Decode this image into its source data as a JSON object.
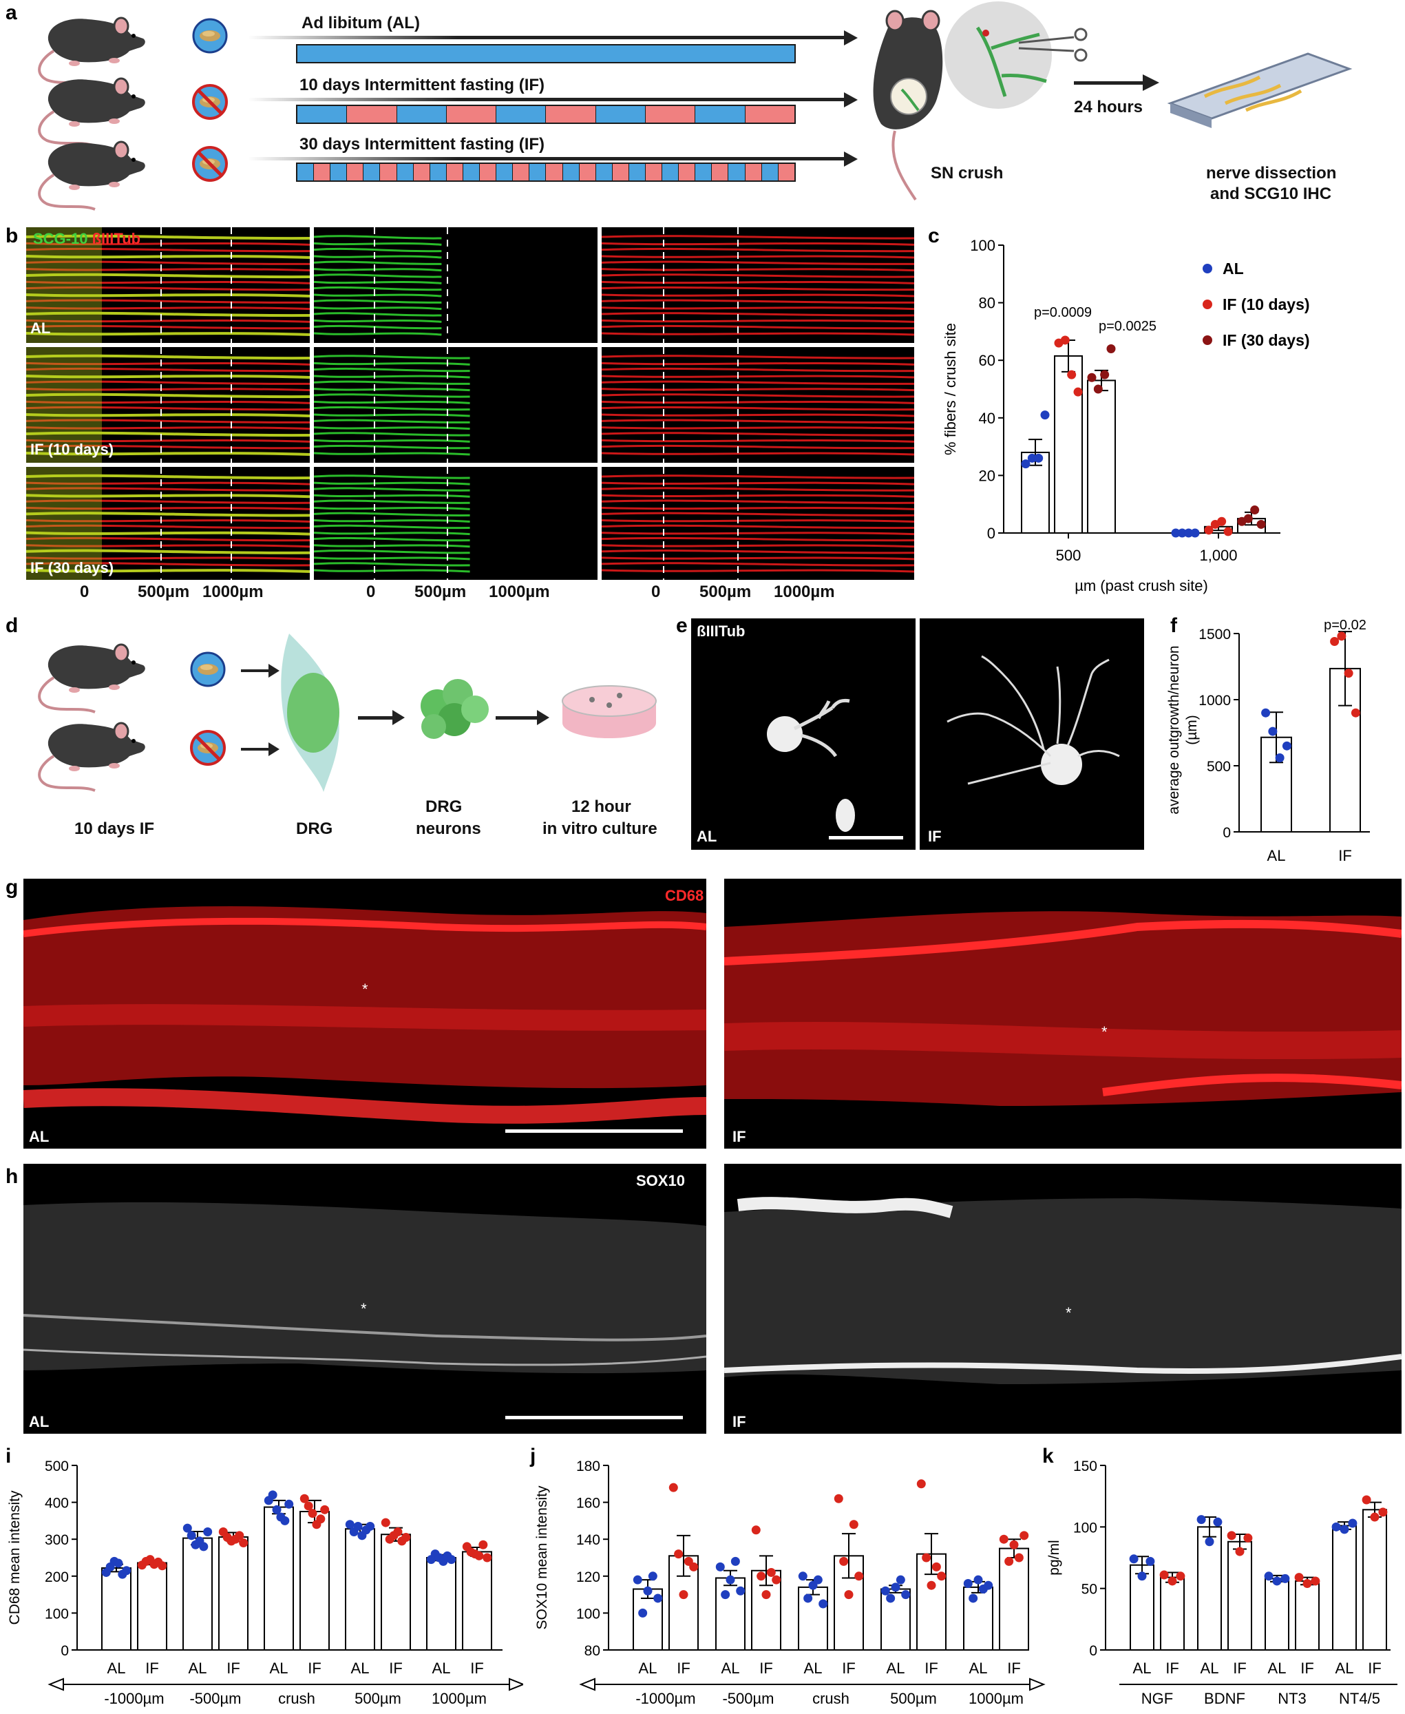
{
  "colors": {
    "AL": "#1f3fbf",
    "IF10": "#d9261c",
    "IF30": "#8b1414",
    "bar_blue": "#4aa3df",
    "bar_red": "#f08080",
    "green": "#3fbf3f",
    "red": "#e01010"
  },
  "panel_letters": [
    "a",
    "b",
    "c",
    "d",
    "e",
    "f",
    "g",
    "h",
    "i",
    "j",
    "k"
  ],
  "panel_a": {
    "arrows": [
      "Ad libitum (AL)",
      "10 days Intermittent fasting (IF)",
      "30 days Intermittent fasting (IF)"
    ],
    "sn_crush": "SN crush",
    "hours": "24 hours",
    "dissection": [
      "nerve dissection",
      "and SCG10 IHC"
    ],
    "icons": [
      "mouse-icon",
      "food-icon",
      "no-food-icon",
      "scissors-icon",
      "slide-icon"
    ]
  },
  "panel_b": {
    "legend_green": "SCG-10",
    "legend_red": "ßIIITub",
    "rows": [
      "AL",
      "IF (10 days)",
      "IF (30 days)"
    ],
    "ticks": [
      "0",
      "500µm",
      "1000µm"
    ]
  },
  "panel_d": {
    "labels": [
      "10 days IF",
      "DRG",
      "DRG",
      "neurons",
      "12 hour",
      "in vitro culture"
    ]
  },
  "panel_e": {
    "title": "ßIIITub",
    "left_tag": "AL",
    "right_tag": "IF"
  },
  "panel_g": {
    "title": "CD68",
    "left_tag": "AL",
    "right_tag": "IF"
  },
  "panel_h": {
    "title": "SOX10",
    "left_tag": "AL",
    "right_tag": "IF"
  },
  "chart_data": [
    {
      "panel": "c",
      "type": "bar",
      "categories": [
        "500",
        "1,000"
      ],
      "series": [
        {
          "name": "AL",
          "values": [
            28,
            0
          ],
          "err": [
            4.5,
            0
          ],
          "points": [
            [
              24,
              26,
              26,
              41
            ],
            [
              0,
              0,
              0,
              0
            ]
          ]
        },
        {
          "name": "IF (10 days)",
          "values": [
            61.5,
            2.2
          ],
          "err": [
            5.5,
            1.3
          ],
          "points": [
            [
              66,
              67,
              55,
              49
            ],
            [
              1,
              3,
              4,
              0.5
            ]
          ]
        },
        {
          "name": "IF (30 days)",
          "values": [
            53,
            5
          ],
          "err": [
            3.5,
            2.2
          ],
          "points": [
            [
              54,
              50,
              55,
              64
            ],
            [
              4,
              5,
              8,
              3
            ]
          ]
        }
      ],
      "annotations": [
        "p=0.0009",
        "p=0.0025"
      ],
      "ylabel": "% fibers / crush site",
      "xlabel": "µm (past crush site)",
      "ylim": [
        0,
        100
      ],
      "yticks": [
        "0",
        "20",
        "40",
        "60",
        "80",
        "100"
      ]
    },
    {
      "panel": "f",
      "type": "bar",
      "categories": [
        "AL",
        "IF"
      ],
      "values": [
        715,
        1235
      ],
      "err": [
        190,
        280
      ],
      "points": [
        [
          900,
          760,
          560,
          650
        ],
        [
          1440,
          1480,
          1200,
          900
        ]
      ],
      "annotation": "p=0.02",
      "ylabel": "average outgrowth/neuron",
      "ylabel2": "(µm)",
      "ylim": [
        0,
        1500
      ],
      "yticks": [
        "0",
        "500",
        "1000",
        "1500"
      ]
    },
    {
      "panel": "i",
      "type": "bar",
      "ylabel": "CD68 mean intensity",
      "ylim": [
        0,
        500
      ],
      "yticks": [
        "0",
        "100",
        "200",
        "300",
        "400",
        "500"
      ],
      "groups": [
        "-1000µm",
        "-500µm",
        "crush",
        "500µm",
        "1000µm"
      ],
      "bar_labels": [
        "AL",
        "IF"
      ],
      "values": [
        [
          222,
          236
        ],
        [
          303,
          306
        ],
        [
          387,
          375
        ],
        [
          328,
          313
        ],
        [
          250,
          266
        ]
      ],
      "err": [
        [
          10,
          5
        ],
        [
          18,
          12
        ],
        [
          18,
          30
        ],
        [
          12,
          18
        ],
        [
          8,
          12
        ]
      ],
      "points": [
        [
          [
            210,
            225,
            240,
            235,
            205,
            215
          ],
          [
            230,
            240,
            245,
            232,
            238,
            228
          ]
        ],
        [
          [
            330,
            310,
            285,
            295,
            280,
            320
          ],
          [
            320,
            305,
            295,
            300,
            310,
            290
          ]
        ],
        [
          [
            405,
            420,
            380,
            360,
            350,
            395
          ],
          [
            410,
            390,
            370,
            340,
            355,
            380
          ]
        ],
        [
          [
            340,
            320,
            335,
            310,
            325,
            335
          ],
          [
            345,
            300,
            310,
            320,
            295,
            305
          ]
        ],
        [
          [
            245,
            260,
            250,
            240,
            255,
            245
          ],
          [
            280,
            265,
            260,
            255,
            285,
            250
          ]
        ]
      ]
    },
    {
      "panel": "j",
      "type": "bar",
      "ylabel": "SOX10 mean intensity",
      "ylim": [
        80,
        180
      ],
      "yticks": [
        "80",
        "100",
        "120",
        "140",
        "160",
        "180"
      ],
      "groups": [
        "-1000µm",
        "-500µm",
        "crush",
        "500µm",
        "1000µm"
      ],
      "bar_labels": [
        "AL",
        "IF"
      ],
      "values": [
        [
          113,
          131
        ],
        [
          119,
          123
        ],
        [
          114,
          131
        ],
        [
          113,
          132
        ],
        [
          114,
          135
        ]
      ],
      "err": [
        [
          5,
          11
        ],
        [
          4,
          8
        ],
        [
          4,
          12
        ],
        [
          2,
          11
        ],
        [
          3,
          5
        ]
      ],
      "points": [
        [
          [
            118,
            100,
            112,
            120,
            108
          ],
          [
            168,
            132,
            110,
            128,
            125
          ]
        ],
        [
          [
            125,
            110,
            118,
            128,
            112
          ],
          [
            145,
            120,
            110,
            122,
            118
          ]
        ],
        [
          [
            120,
            108,
            115,
            118,
            105
          ],
          [
            162,
            128,
            110,
            148,
            120
          ]
        ],
        [
          [
            112,
            108,
            114,
            118,
            110
          ],
          [
            170,
            130,
            115,
            125,
            120
          ]
        ],
        [
          [
            116,
            108,
            118,
            113,
            115
          ],
          [
            140,
            128,
            137,
            130,
            142
          ]
        ]
      ]
    },
    {
      "panel": "k",
      "type": "bar",
      "ylabel": "pg/ml",
      "ylim": [
        0,
        150
      ],
      "yticks": [
        "0",
        "50",
        "100",
        "150"
      ],
      "groups": [
        "NGF",
        "BDNF",
        "NT3",
        "NT4/5"
      ],
      "bar_labels": [
        "AL",
        "IF"
      ],
      "values": [
        [
          69,
          59
        ],
        [
          100,
          88
        ],
        [
          58,
          56
        ],
        [
          101,
          114
        ]
      ],
      "err": [
        [
          7,
          4
        ],
        [
          8,
          6
        ],
        [
          2.5,
          3
        ],
        [
          3,
          6
        ]
      ],
      "points": [
        [
          [
            74,
            60,
            72
          ],
          [
            61,
            56,
            60
          ]
        ],
        [
          [
            106,
            88,
            104
          ],
          [
            93,
            80,
            91
          ]
        ],
        [
          [
            60,
            56,
            58
          ],
          [
            59,
            54,
            56
          ]
        ],
        [
          [
            100,
            98,
            103
          ],
          [
            122,
            108,
            112
          ]
        ]
      ]
    }
  ]
}
